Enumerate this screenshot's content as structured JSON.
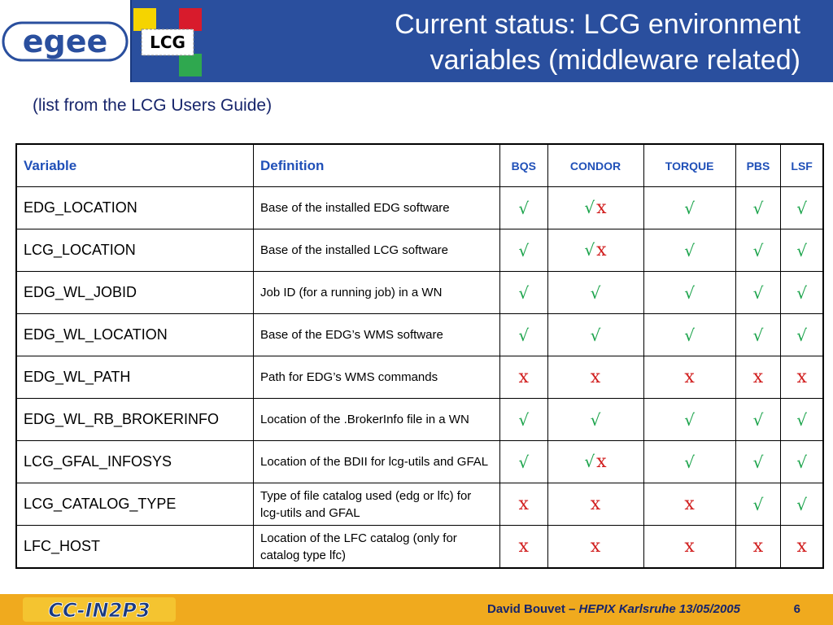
{
  "header": {
    "title_line1": "Current status: LCG environment",
    "title_line2": "variables (middleware related)",
    "logo_egee_text": "egee",
    "logo_lcg_text": "LCG"
  },
  "subtitle": "(list from the LCG Users Guide)",
  "table": {
    "columns": [
      "Variable",
      "Definition",
      "BQS",
      "CONDOR",
      "TORQUE",
      "PBS",
      "LSF"
    ],
    "rows": [
      {
        "variable": "EDG_LOCATION",
        "definition": "Base of the installed EDG software",
        "support": [
          "yes",
          "yes-no",
          "yes",
          "yes",
          "yes"
        ]
      },
      {
        "variable": "LCG_LOCATION",
        "definition": "Base of the installed LCG software",
        "support": [
          "yes",
          "yes-no",
          "yes",
          "yes",
          "yes"
        ]
      },
      {
        "variable": "EDG_WL_JOBID",
        "definition": "Job ID (for a running job) in a WN",
        "support": [
          "yes",
          "yes",
          "yes",
          "yes",
          "yes"
        ]
      },
      {
        "variable": "EDG_WL_LOCATION",
        "definition": "Base of the EDG’s WMS software",
        "support": [
          "yes",
          "yes",
          "yes",
          "yes",
          "yes"
        ]
      },
      {
        "variable": "EDG_WL_PATH",
        "definition": "Path for EDG’s WMS commands",
        "support": [
          "no",
          "no",
          "no",
          "no",
          "no"
        ]
      },
      {
        "variable": "EDG_WL_RB_BROKERINFO",
        "definition": "Location of the .BrokerInfo file in a WN",
        "support": [
          "yes",
          "yes",
          "yes",
          "yes",
          "yes"
        ]
      },
      {
        "variable": "LCG_GFAL_INFOSYS",
        "definition": "Location of the BDII for lcg-utils and GFAL",
        "support": [
          "yes",
          "yes-no",
          "yes",
          "yes",
          "yes"
        ]
      },
      {
        "variable": "LCG_CATALOG_TYPE",
        "definition": "Type of file catalog used (edg or lfc) for lcg-utils and GFAL",
        "support": [
          "no",
          "no",
          "no",
          "yes",
          "yes"
        ]
      },
      {
        "variable": "LFC_HOST",
        "definition": "Location of the LFC catalog (only for catalog type lfc)",
        "support": [
          "no",
          "no",
          "no",
          "no",
          "no"
        ]
      }
    ],
    "symbols": {
      "yes": "√",
      "no": "x"
    }
  },
  "footer": {
    "logo_text": "CC-IN2P3",
    "author": "David Bouvet –",
    "event": "HEPIX Karlsruhe 13/05/2005",
    "page": "6"
  },
  "colors": {
    "header_band": "#2a4f9e",
    "footer_band": "#f0aa1e",
    "yes_mark": "#1aa34a",
    "no_mark": "#d11f1f",
    "header_text": "#2050b8"
  }
}
